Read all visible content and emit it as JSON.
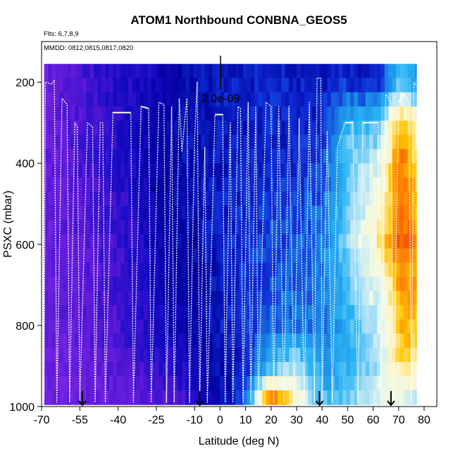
{
  "chart_data": {
    "type": "heatmap",
    "title": "ATOM1 Northbound CONBNA_GEOS5",
    "flights_label": "Flts: 6,7,8,9",
    "dates_label": "MMDD: 0812,0815,0817,0820",
    "scale_label": "2.0e-09",
    "xlabel": "Latitude (deg N)",
    "ylabel": "PSXC (mbar)",
    "xlim": [
      -70,
      85
    ],
    "ylim": [
      1000,
      100
    ],
    "x_ticks": [
      -70,
      -55,
      -40,
      -25,
      -10,
      0,
      10,
      20,
      30,
      40,
      50,
      60,
      70,
      80
    ],
    "y_ticks": [
      200,
      400,
      600,
      800,
      1000
    ],
    "field_extent": {
      "lat": [
        -69,
        77
      ],
      "pressure": [
        155,
        995
      ]
    },
    "arrow_latitudes": [
      -54,
      -8,
      39,
      67
    ],
    "colormap": [
      "#7b26e6",
      "#5a18d6",
      "#1a0cc8",
      "#00009e",
      "#1030d8",
      "#1a8ae6",
      "#2ab4f4",
      "#9fdcf8",
      "#f0fae8",
      "#fff4c0",
      "#ffc400",
      "#ff8000",
      "#e02000"
    ],
    "value_sample_latitudes": [
      -69,
      -60,
      -50,
      -40,
      -30,
      -20,
      -10,
      0,
      10,
      20,
      30,
      40,
      45,
      50,
      55,
      60,
      63,
      66,
      69,
      72,
      75,
      77
    ],
    "value_levels": [
      200,
      300,
      400,
      500,
      600,
      700,
      800,
      900,
      980
    ],
    "value_grid": [
      [
        0.05,
        0.08,
        0.12,
        0.15,
        0.18,
        0.22,
        0.28,
        0.3,
        0.3,
        0.32,
        0.3,
        0.3,
        0.32,
        0.32,
        0.3,
        0.32,
        0.32,
        0.4,
        0.5,
        0.5,
        0.45,
        0.45
      ],
      [
        0.05,
        0.08,
        0.12,
        0.16,
        0.2,
        0.25,
        0.28,
        0.3,
        0.3,
        0.32,
        0.3,
        0.32,
        0.4,
        0.5,
        0.52,
        0.5,
        0.55,
        0.7,
        0.8,
        0.85,
        0.8,
        0.7
      ],
      [
        0.05,
        0.08,
        0.12,
        0.15,
        0.2,
        0.26,
        0.28,
        0.3,
        0.3,
        0.32,
        0.32,
        0.35,
        0.45,
        0.55,
        0.6,
        0.62,
        0.66,
        0.75,
        0.88,
        0.92,
        0.85,
        0.8
      ],
      [
        0.05,
        0.07,
        0.1,
        0.14,
        0.18,
        0.25,
        0.27,
        0.3,
        0.32,
        0.34,
        0.35,
        0.38,
        0.45,
        0.55,
        0.62,
        0.66,
        0.72,
        0.8,
        0.88,
        0.92,
        0.9,
        0.85
      ],
      [
        0.05,
        0.07,
        0.1,
        0.13,
        0.17,
        0.24,
        0.27,
        0.3,
        0.33,
        0.35,
        0.36,
        0.4,
        0.48,
        0.58,
        0.66,
        0.7,
        0.8,
        0.86,
        0.92,
        0.94,
        0.92,
        0.88
      ],
      [
        0.05,
        0.07,
        0.09,
        0.12,
        0.16,
        0.23,
        0.26,
        0.3,
        0.33,
        0.36,
        0.38,
        0.4,
        0.45,
        0.52,
        0.6,
        0.66,
        0.62,
        0.72,
        0.85,
        0.9,
        0.88,
        0.86
      ],
      [
        0.05,
        0.06,
        0.08,
        0.11,
        0.15,
        0.2,
        0.25,
        0.3,
        0.33,
        0.38,
        0.4,
        0.4,
        0.44,
        0.5,
        0.55,
        0.6,
        0.64,
        0.72,
        0.82,
        0.86,
        0.85,
        0.84
      ],
      [
        0.04,
        0.05,
        0.07,
        0.09,
        0.12,
        0.15,
        0.2,
        0.28,
        0.3,
        0.5,
        0.6,
        0.45,
        0.46,
        0.5,
        0.55,
        0.58,
        0.62,
        0.68,
        0.76,
        0.8,
        0.78,
        0.75
      ],
      [
        0.03,
        0.04,
        0.05,
        0.06,
        0.08,
        0.1,
        0.15,
        0.25,
        0.4,
        0.95,
        0.7,
        0.52,
        0.52,
        0.55,
        0.6,
        0.62,
        0.66,
        0.7,
        0.66,
        0.64,
        0.62,
        0.6
      ]
    ]
  }
}
